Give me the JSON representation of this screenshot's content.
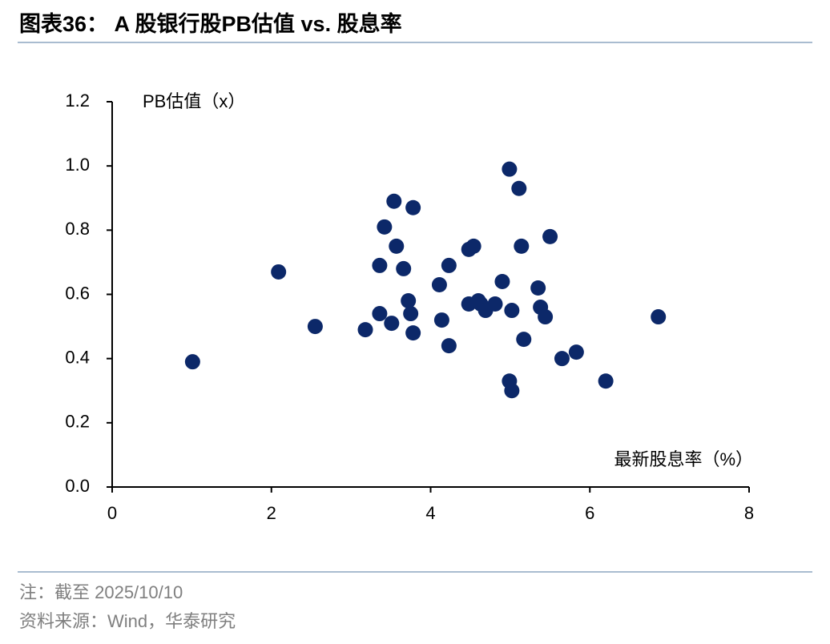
{
  "chart_data": {
    "type": "scatter",
    "title": "图表36：  A 股银行股PB估值 vs. 股息率",
    "y_label": "PB估值（x）",
    "x_label": "最新股息率（%）",
    "note": "注：截至 2025/10/10",
    "source": "资料来源：Wind，华泰研究",
    "color": "#0c2869",
    "x": [
      1.01,
      2.09,
      2.55,
      3.18,
      3.36,
      3.36,
      3.42,
      3.51,
      3.54,
      3.57,
      3.66,
      3.72,
      3.75,
      3.78,
      3.78,
      4.11,
      4.14,
      4.23,
      4.23,
      4.48,
      4.48,
      4.54,
      4.6,
      4.63,
      4.69,
      4.81,
      4.9,
      4.99,
      4.99,
      5.02,
      5.02,
      5.11,
      5.14,
      5.17,
      5.35,
      5.38,
      5.44,
      5.5,
      5.65,
      5.83,
      6.2,
      6.86
    ],
    "values": [
      0.39,
      0.67,
      0.5,
      0.49,
      0.54,
      0.69,
      0.81,
      0.51,
      0.89,
      0.75,
      0.68,
      0.58,
      0.54,
      0.87,
      0.48,
      0.63,
      0.52,
      0.69,
      0.44,
      0.74,
      0.57,
      0.75,
      0.58,
      0.57,
      0.55,
      0.57,
      0.64,
      0.99,
      0.33,
      0.55,
      0.3,
      0.93,
      0.75,
      0.46,
      0.62,
      0.56,
      0.53,
      0.78,
      0.4,
      0.42,
      0.33,
      0.53
    ],
    "xlim": [
      0,
      8
    ],
    "xticks": [
      0,
      2,
      4,
      6,
      8
    ],
    "ylim": [
      0,
      1.2
    ],
    "yticks": [
      {
        "value": 0,
        "label": "0.0"
      },
      0.2,
      0.4,
      0.6,
      0.8,
      {
        "value": 1,
        "label": "1.0"
      },
      1.2
    ]
  }
}
